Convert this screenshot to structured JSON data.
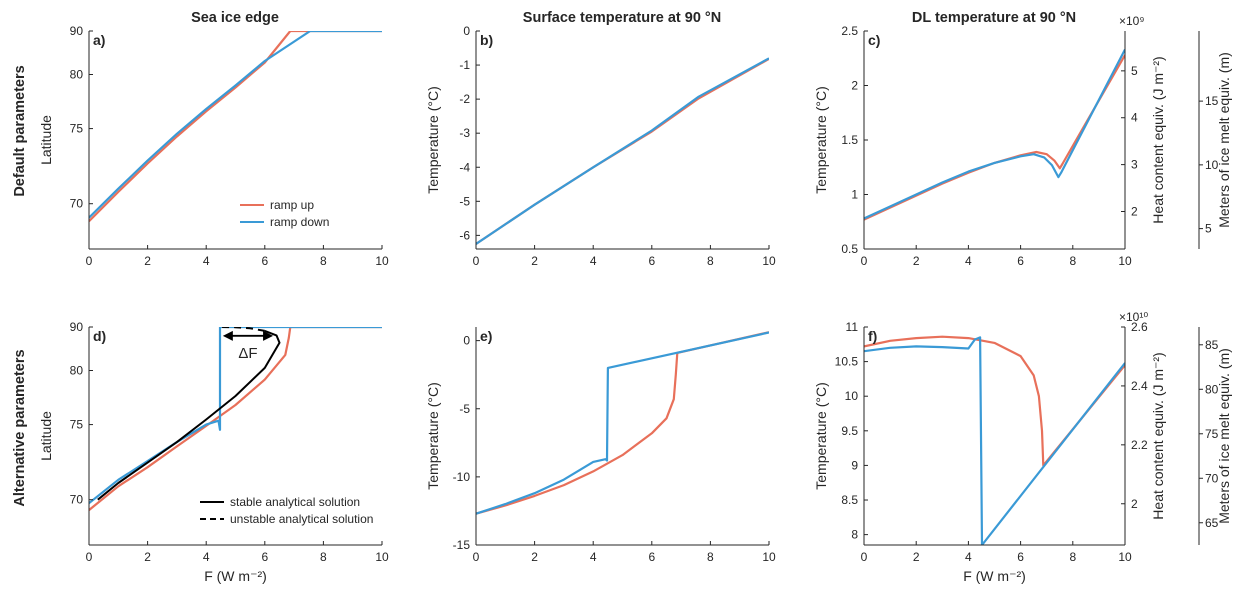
{
  "colors": {
    "ramp_up": "#e8705a",
    "ramp_down": "#3a9ad6",
    "analytic": "#000000",
    "axis": "#262626"
  },
  "row_labels": [
    "Default parameters",
    "Alternative parameters"
  ],
  "column_titles": [
    "Sea ice edge",
    "Surface temperature at 90 °N",
    "DL temperature at 90 °N"
  ],
  "annotation": "ΔF",
  "chart_data": [
    {
      "panel": "a)",
      "type": "line",
      "xlabel": "",
      "ylabel": "Latitude",
      "xlim": [
        0,
        10
      ],
      "ylim": [
        67.5,
        90
      ],
      "y_scale": "sine-latitude",
      "xticks": [
        "0",
        "2",
        "4",
        "6",
        "8",
        "10"
      ],
      "yticks": [
        "70",
        "75",
        "80",
        "90"
      ],
      "legend": {
        "position": "bottom-right",
        "entries": [
          "ramp up",
          "ramp down"
        ]
      },
      "series": [
        {
          "name": "ramp up",
          "color": "ramp_up",
          "x": [
            0,
            1,
            2,
            3,
            4,
            5,
            6,
            6.87,
            10
          ],
          "y": [
            69.0,
            70.7,
            72.5,
            74.4,
            76.4,
            78.6,
            81.5,
            90,
            90
          ]
        },
        {
          "name": "ramp down",
          "color": "ramp_down",
          "x": [
            0,
            1,
            2,
            3,
            4,
            5,
            6,
            7.55,
            10
          ],
          "y": [
            69.2,
            70.9,
            72.7,
            74.6,
            76.6,
            78.8,
            81.7,
            90,
            90
          ]
        }
      ]
    },
    {
      "panel": "b)",
      "type": "line",
      "xlabel": "",
      "ylabel": "Temperature (°C)",
      "xlim": [
        0,
        10
      ],
      "ylim": [
        -6.4,
        0
      ],
      "xticks": [
        "0",
        "2",
        "4",
        "6",
        "8",
        "10"
      ],
      "yticks": [
        "0",
        "-1",
        "-2",
        "-3",
        "-4",
        "-5",
        "-6"
      ],
      "series": [
        {
          "name": "ramp up",
          "color": "ramp_up",
          "x": [
            0,
            2,
            4,
            6,
            7.6,
            10
          ],
          "y": [
            -6.25,
            -5.1,
            -4.0,
            -2.95,
            -1.98,
            -0.82
          ]
        },
        {
          "name": "ramp down",
          "color": "ramp_down",
          "x": [
            0,
            2,
            4,
            6,
            7.6,
            10
          ],
          "y": [
            -6.25,
            -5.1,
            -4.0,
            -2.92,
            -1.93,
            -0.8
          ]
        }
      ]
    },
    {
      "panel": "c)",
      "type": "line",
      "xlabel": "",
      "ylabel": "Temperature (°C)",
      "xlim": [
        0,
        10
      ],
      "ylim": [
        0.5,
        2.5
      ],
      "xticks": [
        "0",
        "2",
        "4",
        "6",
        "8",
        "10"
      ],
      "yticks": [
        "0.5",
        "1",
        "1.5",
        "2",
        "2.5"
      ],
      "right_axes": [
        {
          "label": "Heat content equiv. (J m⁻²)",
          "exponent": "×10⁹",
          "ticks": [
            2,
            3,
            4,
            5
          ],
          "range": [
            1.2,
            5.85
          ]
        },
        {
          "label": "Meters of ice melt equiv. (m)",
          "ticks": [
            5,
            10,
            15
          ],
          "range": [
            3.4,
            20.5
          ]
        }
      ],
      "series": [
        {
          "name": "ramp up",
          "color": "ramp_up",
          "x": [
            0,
            1,
            2,
            3,
            4,
            5,
            6,
            6.6,
            7.0,
            7.3,
            7.5,
            7.6,
            10
          ],
          "y": [
            0.77,
            0.88,
            0.99,
            1.1,
            1.2,
            1.29,
            1.36,
            1.39,
            1.37,
            1.31,
            1.24,
            1.28,
            2.28
          ]
        },
        {
          "name": "ramp down",
          "color": "ramp_down",
          "x": [
            0,
            1,
            2,
            3,
            4,
            5,
            6,
            6.5,
            6.9,
            7.2,
            7.45,
            7.55,
            10
          ],
          "y": [
            0.78,
            0.89,
            1.0,
            1.11,
            1.21,
            1.29,
            1.35,
            1.37,
            1.34,
            1.27,
            1.16,
            1.2,
            2.33
          ]
        }
      ]
    },
    {
      "panel": "d)",
      "type": "line",
      "xlabel": "F (W m⁻²)",
      "ylabel": "Latitude",
      "xlim": [
        0,
        10
      ],
      "ylim": [
        67.5,
        90
      ],
      "y_scale": "sine-latitude",
      "xticks": [
        "0",
        "2",
        "4",
        "6",
        "8",
        "10"
      ],
      "yticks": [
        "70",
        "75",
        "80",
        "90"
      ],
      "legend": {
        "position": "bottom-right",
        "entries": [
          "stable analytical solution",
          "unstable analytical solution"
        ]
      },
      "series": [
        {
          "name": "ramp up",
          "color": "ramp_up",
          "x": [
            0,
            1,
            2,
            3,
            4,
            5,
            6,
            6.7,
            6.82,
            6.87,
            10
          ],
          "y": [
            69.4,
            70.8,
            72.0,
            73.4,
            74.9,
            76.6,
            79.0,
            82.0,
            85.0,
            90,
            90
          ]
        },
        {
          "name": "ramp down",
          "color": "ramp_down",
          "x": [
            0,
            1,
            2,
            3,
            4,
            4.42,
            4.47,
            4.47,
            10
          ],
          "y": [
            69.8,
            71.2,
            72.4,
            73.7,
            75.0,
            75.3,
            74.6,
            90,
            90
          ]
        },
        {
          "name": "stable analytical solution",
          "color": "analytic",
          "dash": false,
          "x": [
            0.3,
            1,
            2,
            3,
            4,
            5,
            6,
            6.5,
            6.4,
            6.0
          ],
          "y": [
            70.0,
            71.0,
            72.3,
            73.7,
            75.4,
            77.4,
            80.3,
            84.0,
            85.6,
            87.0
          ]
        },
        {
          "name": "unstable analytical solution",
          "color": "analytic",
          "dash": true,
          "x": [
            6.0,
            5.5,
            5.0,
            4.5
          ],
          "y": [
            87.0,
            88.3,
            89.3,
            90.0
          ]
        }
      ]
    },
    {
      "panel": "e)",
      "type": "line",
      "xlabel": "",
      "ylabel": "Temperature (°C)",
      "xlim": [
        0,
        10
      ],
      "ylim": [
        -15,
        1.0
      ],
      "xticks": [
        "0",
        "2",
        "4",
        "6",
        "8",
        "10"
      ],
      "yticks": [
        "0",
        "-5",
        "-10",
        "-15"
      ],
      "series": [
        {
          "name": "ramp up",
          "color": "ramp_up",
          "x": [
            0,
            1,
            2,
            3,
            4,
            5,
            6,
            6.5,
            6.75,
            6.82,
            6.87,
            10
          ],
          "y": [
            -12.7,
            -12.1,
            -11.4,
            -10.6,
            -9.6,
            -8.4,
            -6.8,
            -5.7,
            -4.3,
            -2.5,
            -0.9,
            0.62
          ]
        },
        {
          "name": "ramp down",
          "color": "ramp_down",
          "x": [
            0,
            1,
            2,
            3,
            4,
            4.42,
            4.47,
            4.5,
            10
          ],
          "y": [
            -12.7,
            -12.0,
            -11.2,
            -10.2,
            -8.9,
            -8.7,
            -8.8,
            -2.0,
            0.6
          ]
        }
      ]
    },
    {
      "panel": "f)",
      "type": "line",
      "xlabel": "F (W m⁻²)",
      "ylabel": "Temperature (°C)",
      "xlim": [
        0,
        10
      ],
      "ylim": [
        7.85,
        11.0
      ],
      "xticks": [
        "0",
        "2",
        "4",
        "6",
        "8",
        "10"
      ],
      "yticks": [
        "8",
        "8.5",
        "9",
        "9.5",
        "10",
        "10.5",
        "11"
      ],
      "right_axes": [
        {
          "label": "Heat content equiv. (J m⁻²)",
          "exponent": "×10¹⁰",
          "ticks": [
            2,
            2.2,
            2.4,
            2.6
          ],
          "range": [
            1.86,
            2.6
          ]
        },
        {
          "label": "Meters of ice melt equiv. (m)",
          "ticks": [
            65,
            70,
            75,
            80,
            85
          ],
          "range": [
            62.5,
            87.0
          ]
        }
      ],
      "series": [
        {
          "name": "ramp up",
          "color": "ramp_up",
          "x": [
            0,
            1,
            2,
            3,
            4,
            5,
            6,
            6.5,
            6.7,
            6.82,
            6.87,
            10
          ],
          "y": [
            10.72,
            10.8,
            10.84,
            10.86,
            10.84,
            10.77,
            10.58,
            10.3,
            10.0,
            9.5,
            9.0,
            10.45
          ]
        },
        {
          "name": "ramp down",
          "color": "ramp_down",
          "x": [
            0,
            1,
            2,
            3,
            4,
            4.25,
            4.45,
            4.52,
            10
          ],
          "y": [
            10.65,
            10.7,
            10.72,
            10.71,
            10.69,
            10.82,
            10.85,
            7.85,
            10.48
          ]
        }
      ]
    }
  ]
}
